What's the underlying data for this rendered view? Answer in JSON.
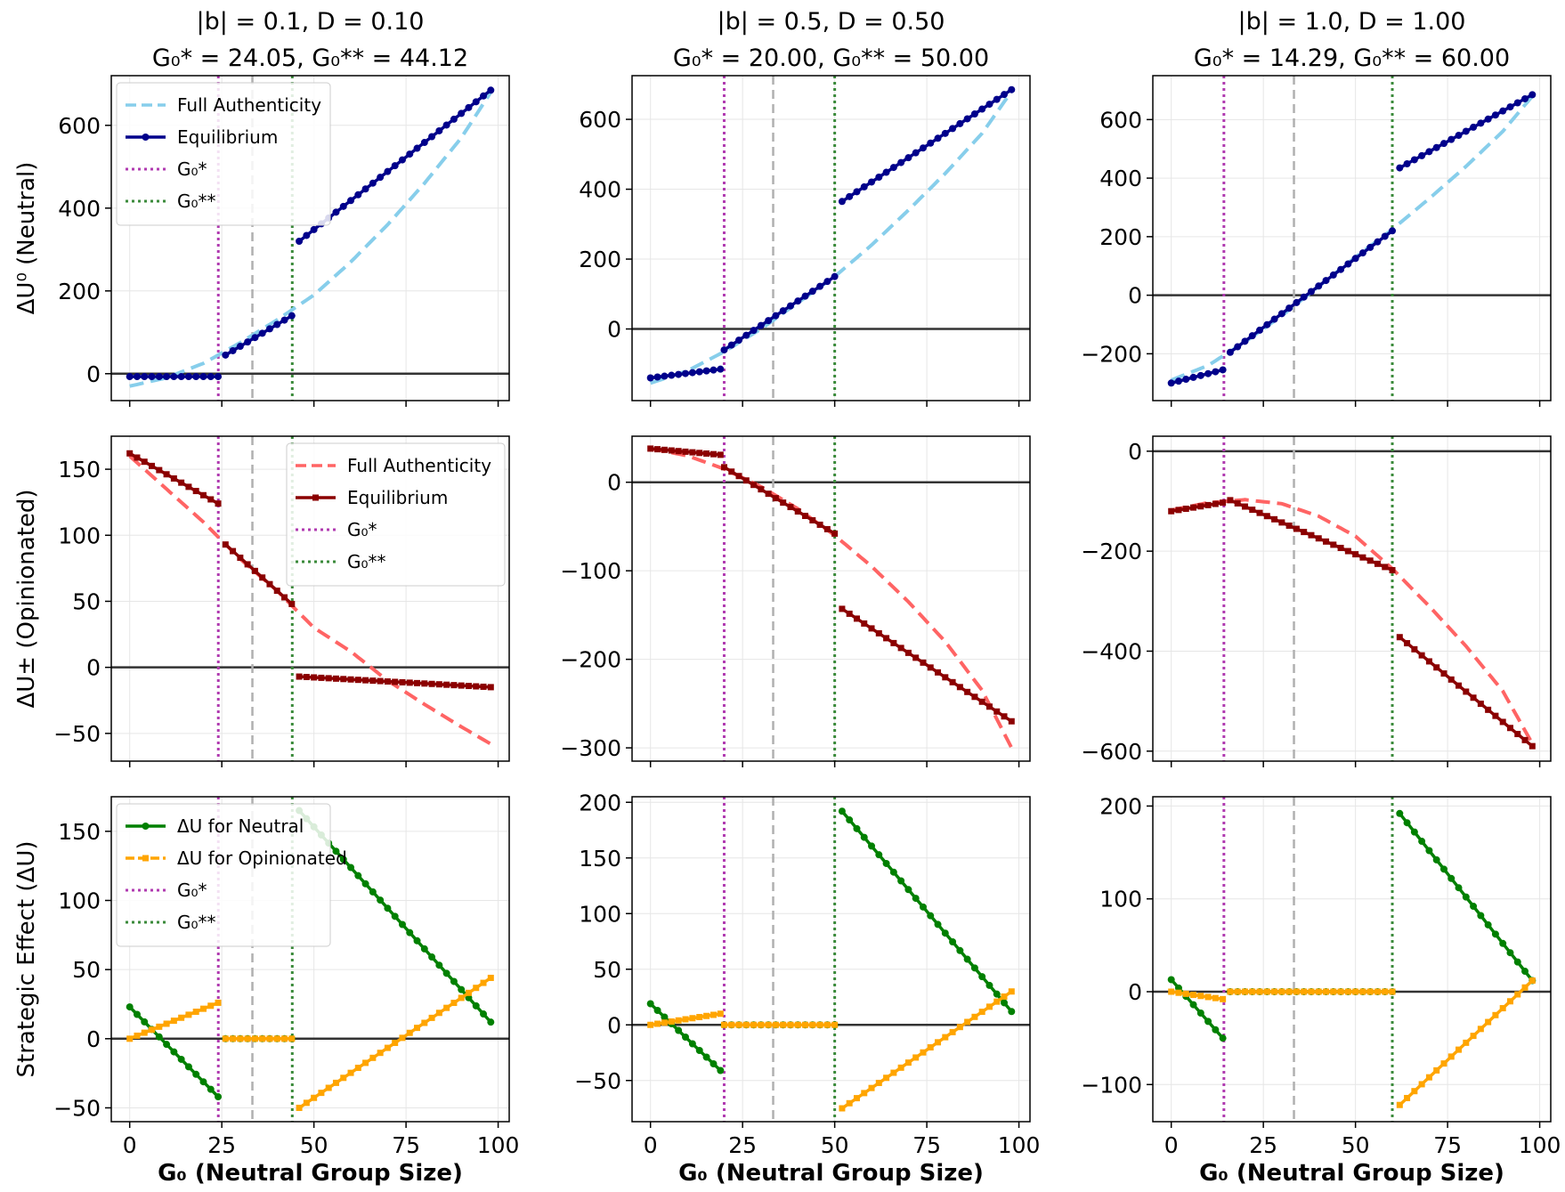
{
  "figure": {
    "xlabel": "G₀ (Neutral Group Size)",
    "row_ylabels": [
      "ΔU⁰ (Neutral)",
      "ΔU± (Opinionated)",
      "Strategic Effect (ΔU)"
    ],
    "col_titles": [
      {
        "line1": "|b| = 0.1, D = 0.10",
        "line2": "G₀* = 24.05, G₀** = 44.12"
      },
      {
        "line1": "|b| = 0.5, D = 0.50",
        "line2": "G₀* = 20.00, G₀** = 50.00"
      },
      {
        "line1": "|b| = 1.0, D = 1.00",
        "line2": "G₀* = 14.29, G₀** = 60.00"
      }
    ],
    "legends": {
      "row0": [
        "Full Authenticity",
        "Equilibrium",
        "G₀*",
        "G₀**"
      ],
      "row1": [
        "Full Authenticity",
        "Equilibrium",
        "G₀*",
        "G₀**"
      ],
      "row2": [
        "ΔU for Neutral",
        "ΔU for Opinionated",
        "G₀*",
        "G₀**"
      ]
    }
  },
  "colors": {
    "neutral_full": "#87ceeb",
    "neutral_eq": "#00008b",
    "opinion_full": "#ff6464",
    "opinion_eq": "#8b0000",
    "effect_neutral": "#008000",
    "effect_opinion": "#ffa500",
    "g_star": "#b03ab0",
    "g_star2": "#3a8a3a",
    "midline": "#b0b0b0",
    "zero": "#333333"
  },
  "chart_data": [
    {
      "type": "line",
      "row": 0,
      "col": 0,
      "xlim": [
        -5,
        103
      ],
      "ylim": [
        -65,
        720
      ],
      "yticks": [
        0,
        200,
        400,
        600
      ],
      "xticks": [
        0,
        25,
        50,
        75,
        100
      ],
      "g_star": 24.05,
      "g_star2": 44.12,
      "midline": 33.3,
      "series": [
        {
          "name": "Full Authenticity",
          "style": "dashed",
          "color_key": "neutral_full",
          "x": [
            0,
            10,
            20,
            30,
            40,
            50,
            60,
            70,
            80,
            90,
            98
          ],
          "y": [
            -30,
            -10,
            25,
            75,
            130,
            190,
            270,
            360,
            460,
            570,
            680
          ]
        },
        {
          "name": "Equilibrium",
          "style": "markers",
          "color_key": "neutral_eq",
          "segments": [
            {
              "x": [
                0,
                24
              ],
              "y": [
                -7,
                -7
              ]
            },
            {
              "x": [
                26,
                44
              ],
              "y": [
                45,
                140
              ]
            },
            {
              "x": [
                46,
                98
              ],
              "y": [
                320,
                685
              ]
            }
          ]
        }
      ]
    },
    {
      "type": "line",
      "row": 0,
      "col": 1,
      "xlim": [
        -5,
        103
      ],
      "ylim": [
        -205,
        725
      ],
      "yticks": [
        0,
        200,
        400,
        600
      ],
      "xticks": [
        0,
        25,
        50,
        75,
        100
      ],
      "g_star": 20,
      "g_star2": 50,
      "midline": 33.3,
      "series": [
        {
          "name": "Full Authenticity",
          "style": "dashed",
          "color_key": "neutral_full",
          "x": [
            0,
            10,
            20,
            30,
            40,
            50,
            60,
            70,
            80,
            90,
            98
          ],
          "y": [
            -155,
            -120,
            -65,
            0,
            75,
            150,
            240,
            340,
            445,
            560,
            680
          ]
        },
        {
          "name": "Equilibrium",
          "style": "markers",
          "color_key": "neutral_eq",
          "segments": [
            {
              "x": [
                0,
                19
              ],
              "y": [
                -140,
                -115
              ]
            },
            {
              "x": [
                20,
                50
              ],
              "y": [
                -60,
                150
              ]
            },
            {
              "x": [
                52,
                98
              ],
              "y": [
                365,
                685
              ]
            }
          ]
        }
      ]
    },
    {
      "type": "line",
      "row": 0,
      "col": 2,
      "xlim": [
        -5,
        103
      ],
      "ylim": [
        -360,
        750
      ],
      "yticks": [
        -200,
        0,
        200,
        400,
        600
      ],
      "xticks": [
        0,
        25,
        50,
        75,
        100
      ],
      "g_star": 14.29,
      "g_star2": 60,
      "midline": 33.3,
      "series": [
        {
          "name": "Full Authenticity",
          "style": "dashed",
          "color_key": "neutral_full",
          "x": [
            0,
            10,
            20,
            30,
            40,
            50,
            60,
            70,
            80,
            90,
            98
          ],
          "y": [
            -290,
            -240,
            -160,
            -70,
            30,
            130,
            225,
            330,
            440,
            560,
            680
          ]
        },
        {
          "name": "Equilibrium",
          "style": "markers",
          "color_key": "neutral_eq",
          "segments": [
            {
              "x": [
                0,
                14
              ],
              "y": [
                -300,
                -255
              ]
            },
            {
              "x": [
                16,
                60
              ],
              "y": [
                -195,
                220
              ]
            },
            {
              "x": [
                62,
                98
              ],
              "y": [
                435,
                685
              ]
            }
          ]
        }
      ]
    },
    {
      "type": "line",
      "row": 1,
      "col": 0,
      "xlim": [
        -5,
        103
      ],
      "ylim": [
        -71,
        175
      ],
      "yticks": [
        -50,
        0,
        50,
        100,
        150
      ],
      "xticks": [
        0,
        25,
        50,
        75,
        100
      ],
      "g_star": 24.05,
      "g_star2": 44.12,
      "midline": 33.3,
      "series": [
        {
          "name": "Full Authenticity",
          "style": "dashed",
          "color_key": "opinion_full",
          "x": [
            0,
            10,
            20,
            30,
            40,
            50,
            60,
            70,
            80,
            90,
            98
          ],
          "y": [
            160,
            135,
            110,
            82,
            58,
            30,
            12,
            -10,
            -28,
            -45,
            -58
          ]
        },
        {
          "name": "Equilibrium",
          "style": "markers",
          "color_key": "opinion_eq",
          "segments": [
            {
              "x": [
                0,
                24
              ],
              "y": [
                162,
                124
              ]
            },
            {
              "x": [
                26,
                44
              ],
              "y": [
                93,
                48
              ]
            },
            {
              "x": [
                46,
                98
              ],
              "y": [
                -7,
                -15
              ]
            }
          ]
        }
      ]
    },
    {
      "type": "line",
      "row": 1,
      "col": 1,
      "xlim": [
        -5,
        103
      ],
      "ylim": [
        -315,
        52
      ],
      "yticks": [
        -300,
        -200,
        -100,
        0
      ],
      "xticks": [
        0,
        25,
        50,
        75,
        100
      ],
      "g_star": 20,
      "g_star2": 50,
      "midline": 33.3,
      "series": [
        {
          "name": "Full Authenticity",
          "style": "dashed",
          "color_key": "opinion_full",
          "x": [
            0,
            10,
            20,
            30,
            40,
            50,
            60,
            70,
            80,
            90,
            98
          ],
          "y": [
            38,
            30,
            15,
            -5,
            -30,
            -60,
            -95,
            -135,
            -180,
            -235,
            -300
          ]
        },
        {
          "name": "Equilibrium",
          "style": "markers",
          "color_key": "opinion_eq",
          "segments": [
            {
              "x": [
                0,
                19
              ],
              "y": [
                38,
                31
              ]
            },
            {
              "x": [
                20,
                50
              ],
              "y": [
                17,
                -58
              ]
            },
            {
              "x": [
                52,
                98
              ],
              "y": [
                -143,
                -270
              ]
            }
          ]
        }
      ]
    },
    {
      "type": "line",
      "row": 1,
      "col": 2,
      "xlim": [
        -5,
        103
      ],
      "ylim": [
        -620,
        30
      ],
      "yticks": [
        -600,
        -400,
        -200,
        0
      ],
      "xticks": [
        0,
        25,
        50,
        75,
        100
      ],
      "g_star": 14.29,
      "g_star2": 60,
      "midline": 33.3,
      "series": [
        {
          "name": "Full Authenticity",
          "style": "dashed",
          "color_key": "opinion_full",
          "x": [
            0,
            10,
            20,
            30,
            40,
            50,
            60,
            70,
            80,
            90,
            98
          ],
          "y": [
            -118,
            -103,
            -97,
            -105,
            -130,
            -170,
            -235,
            -310,
            -390,
            -480,
            -585
          ]
        },
        {
          "name": "Equilibrium",
          "style": "markers",
          "color_key": "opinion_eq",
          "segments": [
            {
              "x": [
                0,
                14
              ],
              "y": [
                -120,
                -103
              ]
            },
            {
              "x": [
                16,
                60
              ],
              "y": [
                -98,
                -238
              ]
            },
            {
              "x": [
                62,
                98
              ],
              "y": [
                -372,
                -590
              ]
            }
          ]
        }
      ]
    },
    {
      "type": "line",
      "row": 2,
      "col": 0,
      "xlim": [
        -5,
        103
      ],
      "ylim": [
        -60,
        175
      ],
      "yticks": [
        -50,
        0,
        50,
        100,
        150
      ],
      "xticks": [
        0,
        25,
        50,
        75,
        100
      ],
      "g_star": 24.05,
      "g_star2": 44.12,
      "midline": 33.3,
      "series": [
        {
          "name": "ΔU for Neutral",
          "style": "markers",
          "color_key": "effect_neutral",
          "segments": [
            {
              "x": [
                0,
                24
              ],
              "y": [
                23,
                -42
              ]
            },
            {
              "x": [
                26,
                44
              ],
              "y": [
                0,
                0
              ]
            },
            {
              "x": [
                46,
                98
              ],
              "y": [
                165,
                12
              ]
            }
          ]
        },
        {
          "name": "ΔU for Opinionated",
          "style": "markers",
          "color_key": "effect_opinion",
          "segments": [
            {
              "x": [
                0,
                24
              ],
              "y": [
                0,
                26
              ]
            },
            {
              "x": [
                26,
                44
              ],
              "y": [
                0,
                0
              ]
            },
            {
              "x": [
                46,
                98
              ],
              "y": [
                -50,
                44
              ]
            }
          ]
        }
      ]
    },
    {
      "type": "line",
      "row": 2,
      "col": 1,
      "xlim": [
        -5,
        103
      ],
      "ylim": [
        -87,
        205
      ],
      "yticks": [
        -50,
        0,
        50,
        100,
        150,
        200
      ],
      "xticks": [
        0,
        25,
        50,
        75,
        100
      ],
      "g_star": 20,
      "g_star2": 50,
      "midline": 33.3,
      "series": [
        {
          "name": "ΔU for Neutral",
          "style": "markers",
          "color_key": "effect_neutral",
          "segments": [
            {
              "x": [
                0,
                19
              ],
              "y": [
                19,
                -41
              ]
            },
            {
              "x": [
                20,
                50
              ],
              "y": [
                0,
                0
              ]
            },
            {
              "x": [
                52,
                98
              ],
              "y": [
                192,
                12
              ]
            }
          ]
        },
        {
          "name": "ΔU for Opinionated",
          "style": "markers",
          "color_key": "effect_opinion",
          "segments": [
            {
              "x": [
                0,
                19
              ],
              "y": [
                0,
                10
              ]
            },
            {
              "x": [
                20,
                50
              ],
              "y": [
                0,
                0
              ]
            },
            {
              "x": [
                52,
                98
              ],
              "y": [
                -75,
                30
              ]
            }
          ]
        }
      ]
    },
    {
      "type": "line",
      "row": 2,
      "col": 2,
      "xlim": [
        -5,
        103
      ],
      "ylim": [
        -140,
        210
      ],
      "yticks": [
        -100,
        0,
        100,
        200
      ],
      "xticks": [
        0,
        25,
        50,
        75,
        100
      ],
      "g_star": 14.29,
      "g_star2": 60,
      "midline": 33.3,
      "series": [
        {
          "name": "ΔU for Neutral",
          "style": "markers",
          "color_key": "effect_neutral",
          "segments": [
            {
              "x": [
                0,
                14
              ],
              "y": [
                13,
                -50
              ]
            },
            {
              "x": [
                16,
                60
              ],
              "y": [
                0,
                0
              ]
            },
            {
              "x": [
                62,
                98
              ],
              "y": [
                192,
                12
              ]
            }
          ]
        },
        {
          "name": "ΔU for Opinionated",
          "style": "markers",
          "color_key": "effect_opinion",
          "segments": [
            {
              "x": [
                0,
                14
              ],
              "y": [
                0,
                -8
              ]
            },
            {
              "x": [
                16,
                60
              ],
              "y": [
                0,
                0
              ]
            },
            {
              "x": [
                62,
                98
              ],
              "y": [
                -122,
                12
              ]
            }
          ]
        }
      ]
    }
  ]
}
